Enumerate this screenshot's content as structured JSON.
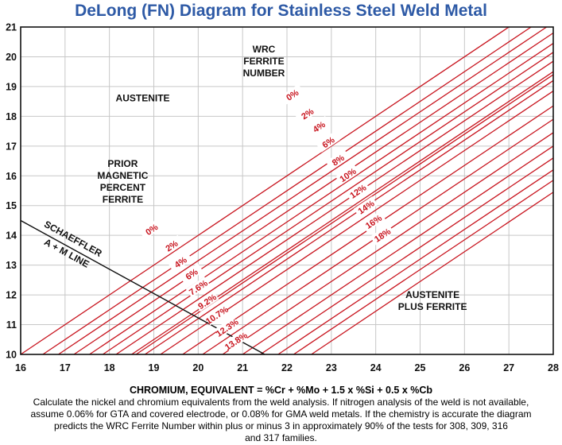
{
  "chart_data": {
    "type": "line",
    "title": "DeLong (FN) Diagram for Stainless Steel Weld Metal",
    "xlabel": "CHROMIUM, EQUIVALENT = %Cr + %Mo + 1.5 x %Si + 0.5 x %Cb",
    "ylabel": "",
    "xlim": [
      16,
      28
    ],
    "ylim": [
      10,
      21
    ],
    "x_ticks": [
      "16",
      "17",
      "18",
      "19",
      "20",
      "21",
      "22",
      "23",
      "24",
      "25",
      "26",
      "27",
      "28"
    ],
    "y_ticks": [
      "10",
      "11",
      "12",
      "13",
      "14",
      "15",
      "16",
      "17",
      "18",
      "19",
      "20",
      "21"
    ],
    "grid": true,
    "wrc_ferrite_lines": [
      {
        "label": "0%",
        "x0": 18.6,
        "label_x": 22.12,
        "label_y": 18.72
      },
      {
        "label": "2%",
        "x0": 19.15,
        "label_x": 22.46,
        "label_y": 18.09
      },
      {
        "label": "4%",
        "x0": 19.65,
        "label_x": 22.72,
        "label_y": 17.65
      },
      {
        "label": "6%",
        "x0": 20.1,
        "label_x": 22.93,
        "label_y": 17.13
      },
      {
        "label": "8%",
        "x0": 20.55,
        "label_x": 23.15,
        "label_y": 16.53
      },
      {
        "label": "10%",
        "x0": 21.0,
        "label_x": 23.37,
        "label_y": 16.03
      },
      {
        "label": "12%",
        "x0": 21.4,
        "label_x": 23.6,
        "label_y": 15.48
      },
      {
        "label": "14%",
        "x0": 21.8,
        "label_x": 23.78,
        "label_y": 14.95
      },
      {
        "label": "16%",
        "x0": 22.15,
        "label_x": 23.95,
        "label_y": 14.46
      },
      {
        "label": "18%",
        "x0": 22.55,
        "label_x": 24.15,
        "label_y": 14.01
      }
    ],
    "magnetic_ferrite_lines": [
      {
        "label": "0%",
        "x0": 16.0,
        "label_x": 18.95,
        "label_y": 14.2
      },
      {
        "label": "2%",
        "x0": 16.5,
        "label_x": 19.4,
        "label_y": 13.65
      },
      {
        "label": "4%",
        "x0": 16.85,
        "label_x": 19.6,
        "label_y": 13.1
      },
      {
        "label": "6%",
        "x0": 17.2,
        "label_x": 19.85,
        "label_y": 12.7
      },
      {
        "label": "7.6%",
        "x0": 17.55,
        "label_x": 20.0,
        "label_y": 12.25
      },
      {
        "label": "9.2%",
        "x0": 17.85,
        "label_x": 20.2,
        "label_y": 11.78
      },
      {
        "label": "10.7%",
        "x0": 18.15,
        "label_x": 20.42,
        "label_y": 11.32
      },
      {
        "label": "12.3%",
        "x0": 18.5,
        "label_x": 20.65,
        "label_y": 10.9
      },
      {
        "label": "13.8%",
        "x0": 18.8,
        "label_x": 20.85,
        "label_y": 10.45
      }
    ],
    "schaeffler_line": {
      "label_lines": [
        "SCHAEFFLER",
        "A + M LINE"
      ],
      "points": [
        [
          16,
          14.5
        ],
        [
          21.5,
          10
        ]
      ]
    },
    "annotations": [
      {
        "lines": [
          "WRC",
          "FERRITE",
          "NUMBER"
        ],
        "x": 21.48,
        "y": 20.15
      },
      {
        "lines": [
          "AUSTENITE"
        ],
        "x": 18.75,
        "y": 18.5
      },
      {
        "lines": [
          "PRIOR",
          "MAGNETIC",
          "PERCENT",
          "FERRITE"
        ],
        "x": 18.3,
        "y": 16.3
      },
      {
        "lines": [
          "AUSTENITE",
          "PLUS FERRITE"
        ],
        "x": 25.28,
        "y": 11.9
      }
    ],
    "caption_lines": [
      "Calculate the nickel and chromium equivalents from the weld analysis. If nitrogen analysis of the weld is not available,",
      "assume 0.06% for GTA and covered electrode, or 0.08% for GMA weld metals. If the chemistry is accurate the diagram",
      "predicts the WRC Ferrite Number within plus or minus 3 in approximately 90% of the tests for 308, 309, 316",
      "and 317 families."
    ]
  },
  "colors": {
    "title": "#2e5aa6",
    "ferrite_line": "#c8141e",
    "grid": "#c7c7c7",
    "axis": "#111111"
  }
}
